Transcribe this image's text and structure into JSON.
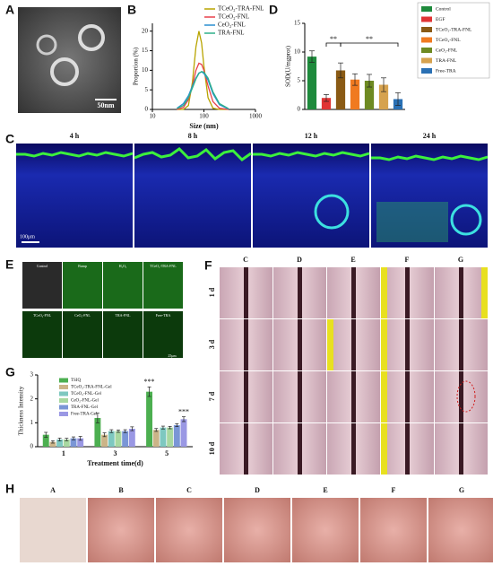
{
  "panel_letters": [
    "A",
    "B",
    "C",
    "D",
    "E",
    "F",
    "G",
    "H"
  ],
  "panel_a": {
    "scale_bar": "50nm"
  },
  "panel_c": {
    "timepoints": [
      "4 h",
      "8 h",
      "12 h",
      "24 h"
    ],
    "scale_bar": "100μm"
  },
  "panel_e": {
    "labels": [
      "Control",
      "Bump",
      "H₂O₂",
      "TCeO₂-TRA-FNL",
      "TCeO₂-FNL",
      "CeO₂-FNL",
      "TRA-FNL",
      "Free-TRA"
    ],
    "scale_bar": "25μm"
  },
  "panel_f": {
    "columns": [
      "C",
      "D",
      "E",
      "F",
      "G"
    ],
    "rows": [
      "1 d",
      "3 d",
      "7 d",
      "10 d"
    ]
  },
  "panel_h": {
    "labels": [
      "A",
      "B",
      "C",
      "D",
      "E",
      "F",
      "G"
    ]
  },
  "chart_data": [
    {
      "type": "line",
      "xlabel": "Size (nm)",
      "ylabel": "Proportion (%)",
      "log_x": true,
      "xlim": [
        10,
        1000
      ],
      "xticks": [
        10,
        100,
        1000
      ],
      "ylim": [
        0,
        22
      ],
      "yticks": [
        0,
        5,
        10,
        15,
        20
      ],
      "legend": "upper right",
      "x": [
        30,
        40,
        50,
        60,
        70,
        80,
        90,
        100,
        120,
        150,
        200,
        300
      ],
      "series": [
        {
          "name": "TCeO₂-TRA-FNL",
          "color": "#b8a400",
          "values": [
            0,
            0,
            1,
            7,
            16,
            20,
            17,
            11,
            3,
            0.3,
            0,
            0
          ]
        },
        {
          "name": "TCeO₂-FNL",
          "color": "#e8404a",
          "values": [
            0,
            0.5,
            2.5,
            6,
            10,
            11.8,
            11.5,
            10,
            6,
            2,
            0.3,
            0
          ]
        },
        {
          "name": "CeO₂-FNL",
          "color": "#2a8fd0",
          "values": [
            0.3,
            1.5,
            3.5,
            6,
            8,
            9.3,
            9.6,
            9.2,
            7.5,
            4,
            1.2,
            0.1
          ]
        },
        {
          "name": "TRA-FNL",
          "color": "#2fb08a",
          "values": [
            0.2,
            1,
            3,
            5.5,
            7.8,
            9.2,
            9.7,
            9.5,
            8,
            4.5,
            1.5,
            0.2
          ]
        }
      ]
    },
    {
      "type": "bar",
      "ylabel": "SOD(U/mgprot)",
      "ylim": [
        0,
        15
      ],
      "yticks": [
        0,
        5,
        10,
        15
      ],
      "legend": "outside right",
      "categories": [
        "Control",
        "EGF",
        "TCeO₂-TRA-FNL",
        "TCeO₂-FNL",
        "CeO₂-FNL",
        "TRA-FNL",
        "Free-TRA"
      ],
      "values": [
        9.2,
        2,
        6.8,
        5.2,
        5,
        4.3,
        1.8
      ],
      "errors": [
        1,
        0.6,
        1.3,
        1,
        1.1,
        1.2,
        1.1
      ],
      "colors": [
        "#1e8a3c",
        "#e03434",
        "#8a5a14",
        "#f07a20",
        "#6e8a22",
        "#d6a24e",
        "#2a70b4"
      ],
      "annotations": [
        "**",
        "**"
      ]
    },
    {
      "type": "grouped_bar",
      "xlabel": "Treatment time(d)",
      "ylabel": "Thickness Intensity",
      "ylim": [
        0,
        3
      ],
      "yticks": [
        0,
        1,
        2,
        3
      ],
      "legend": "upper left",
      "categories": [
        "1",
        "3",
        "5"
      ],
      "series": [
        {
          "name": "TSIQ",
          "color": "#4caf50",
          "values": [
            0.5,
            1.2,
            2.3
          ],
          "errors": [
            0.1,
            0.2,
            0.2
          ]
        },
        {
          "name": "TCeO₂-TRA-FNL-Gel",
          "color": "#cbb488",
          "values": [
            0.2,
            0.5,
            0.7
          ],
          "errors": [
            0.05,
            0.08,
            0.06
          ]
        },
        {
          "name": "TCeO₂-FNL-Gel",
          "color": "#7ec8c0",
          "values": [
            0.3,
            0.65,
            0.8
          ],
          "errors": [
            0.06,
            0.06,
            0.06
          ]
        },
        {
          "name": "CeO₂-FNL-Gel",
          "color": "#a8d8a0",
          "values": [
            0.3,
            0.65,
            0.8
          ],
          "errors": [
            0.05,
            0.05,
            0.05
          ]
        },
        {
          "name": "TRA-FNL-Gel",
          "color": "#7a96d6",
          "values": [
            0.35,
            0.65,
            0.9
          ],
          "errors": [
            0.06,
            0.06,
            0.06
          ]
        },
        {
          "name": "Free-TRA-Gel",
          "color": "#9a98e4",
          "values": [
            0.35,
            0.75,
            1.15
          ],
          "errors": [
            0.08,
            0.08,
            0.1
          ]
        }
      ],
      "annotations": [
        "***",
        "***"
      ]
    }
  ]
}
